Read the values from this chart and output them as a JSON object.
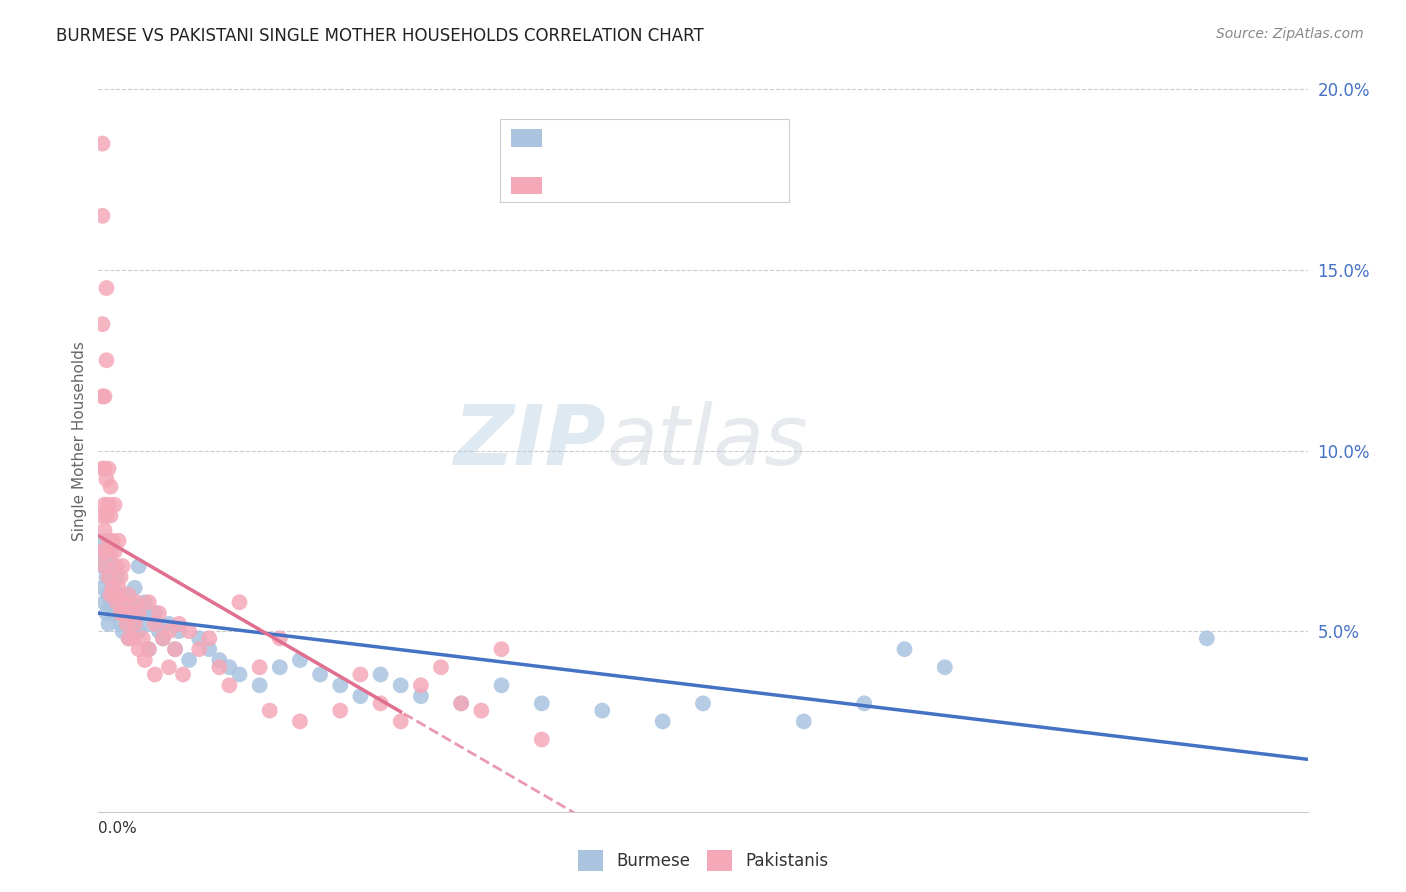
{
  "title": "BURMESE VS PAKISTANI SINGLE MOTHER HOUSEHOLDS CORRELATION CHART",
  "source": "Source: ZipAtlas.com",
  "ylabel": "Single Mother Households",
  "watermark_zip": "ZIP",
  "watermark_atlas": "atlas",
  "xmin": 0.0,
  "xmax": 0.6,
  "ymin": 0.0,
  "ymax": 0.205,
  "yticks": [
    0.05,
    0.1,
    0.15,
    0.2
  ],
  "ytick_labels": [
    "5.0%",
    "10.0%",
    "15.0%",
    "20.0%"
  ],
  "burmese_color": "#aac4e0",
  "pakistani_color": "#f4a8b8",
  "burmese_trend_color": "#4472c4",
  "pakistani_trend_color": "#e07090",
  "burmese_scatter": [
    [
      0.001,
      0.072
    ],
    [
      0.002,
      0.068
    ],
    [
      0.002,
      0.062
    ],
    [
      0.003,
      0.058
    ],
    [
      0.003,
      0.075
    ],
    [
      0.004,
      0.065
    ],
    [
      0.004,
      0.055
    ],
    [
      0.005,
      0.06
    ],
    [
      0.005,
      0.052
    ],
    [
      0.005,
      0.07
    ],
    [
      0.006,
      0.058
    ],
    [
      0.006,
      0.065
    ],
    [
      0.007,
      0.055
    ],
    [
      0.007,
      0.062
    ],
    [
      0.008,
      0.06
    ],
    [
      0.008,
      0.068
    ],
    [
      0.009,
      0.058
    ],
    [
      0.009,
      0.065
    ],
    [
      0.01,
      0.055
    ],
    [
      0.01,
      0.06
    ],
    [
      0.011,
      0.052
    ],
    [
      0.011,
      0.058
    ],
    [
      0.012,
      0.055
    ],
    [
      0.012,
      0.05
    ],
    [
      0.013,
      0.06
    ],
    [
      0.014,
      0.052
    ],
    [
      0.015,
      0.055
    ],
    [
      0.015,
      0.048
    ],
    [
      0.016,
      0.058
    ],
    [
      0.017,
      0.05
    ],
    [
      0.018,
      0.053
    ],
    [
      0.018,
      0.062
    ],
    [
      0.02,
      0.068
    ],
    [
      0.02,
      0.05
    ],
    [
      0.022,
      0.055
    ],
    [
      0.023,
      0.058
    ],
    [
      0.025,
      0.052
    ],
    [
      0.025,
      0.045
    ],
    [
      0.028,
      0.055
    ],
    [
      0.03,
      0.05
    ],
    [
      0.032,
      0.048
    ],
    [
      0.035,
      0.052
    ],
    [
      0.038,
      0.045
    ],
    [
      0.04,
      0.05
    ],
    [
      0.045,
      0.042
    ],
    [
      0.05,
      0.048
    ],
    [
      0.055,
      0.045
    ],
    [
      0.06,
      0.042
    ],
    [
      0.065,
      0.04
    ],
    [
      0.07,
      0.038
    ],
    [
      0.08,
      0.035
    ],
    [
      0.09,
      0.04
    ],
    [
      0.1,
      0.042
    ],
    [
      0.11,
      0.038
    ],
    [
      0.12,
      0.035
    ],
    [
      0.13,
      0.032
    ],
    [
      0.14,
      0.038
    ],
    [
      0.15,
      0.035
    ],
    [
      0.16,
      0.032
    ],
    [
      0.18,
      0.03
    ],
    [
      0.2,
      0.035
    ],
    [
      0.22,
      0.03
    ],
    [
      0.25,
      0.028
    ],
    [
      0.28,
      0.025
    ],
    [
      0.3,
      0.03
    ],
    [
      0.35,
      0.025
    ],
    [
      0.38,
      0.03
    ],
    [
      0.4,
      0.045
    ],
    [
      0.42,
      0.04
    ],
    [
      0.55,
      0.048
    ]
  ],
  "pakistani_scatter": [
    [
      0.001,
      0.072
    ],
    [
      0.001,
      0.082
    ],
    [
      0.002,
      0.095
    ],
    [
      0.002,
      0.115
    ],
    [
      0.002,
      0.135
    ],
    [
      0.002,
      0.165
    ],
    [
      0.002,
      0.185
    ],
    [
      0.003,
      0.068
    ],
    [
      0.003,
      0.078
    ],
    [
      0.003,
      0.085
    ],
    [
      0.003,
      0.095
    ],
    [
      0.003,
      0.115
    ],
    [
      0.004,
      0.072
    ],
    [
      0.004,
      0.082
    ],
    [
      0.004,
      0.092
    ],
    [
      0.004,
      0.125
    ],
    [
      0.004,
      0.145
    ],
    [
      0.005,
      0.065
    ],
    [
      0.005,
      0.075
    ],
    [
      0.005,
      0.085
    ],
    [
      0.005,
      0.095
    ],
    [
      0.006,
      0.06
    ],
    [
      0.006,
      0.072
    ],
    [
      0.006,
      0.082
    ],
    [
      0.006,
      0.09
    ],
    [
      0.007,
      0.062
    ],
    [
      0.007,
      0.075
    ],
    [
      0.008,
      0.06
    ],
    [
      0.008,
      0.072
    ],
    [
      0.008,
      0.085
    ],
    [
      0.009,
      0.058
    ],
    [
      0.009,
      0.068
    ],
    [
      0.01,
      0.062
    ],
    [
      0.01,
      0.075
    ],
    [
      0.011,
      0.055
    ],
    [
      0.011,
      0.065
    ],
    [
      0.012,
      0.055
    ],
    [
      0.012,
      0.068
    ],
    [
      0.013,
      0.058
    ],
    [
      0.014,
      0.052
    ],
    [
      0.015,
      0.048
    ],
    [
      0.015,
      0.06
    ],
    [
      0.016,
      0.055
    ],
    [
      0.017,
      0.048
    ],
    [
      0.018,
      0.052
    ],
    [
      0.019,
      0.058
    ],
    [
      0.02,
      0.045
    ],
    [
      0.02,
      0.055
    ],
    [
      0.022,
      0.048
    ],
    [
      0.023,
      0.042
    ],
    [
      0.025,
      0.045
    ],
    [
      0.025,
      0.058
    ],
    [
      0.028,
      0.052
    ],
    [
      0.028,
      0.038
    ],
    [
      0.03,
      0.055
    ],
    [
      0.032,
      0.048
    ],
    [
      0.035,
      0.04
    ],
    [
      0.035,
      0.05
    ],
    [
      0.038,
      0.045
    ],
    [
      0.04,
      0.052
    ],
    [
      0.042,
      0.038
    ],
    [
      0.045,
      0.05
    ],
    [
      0.05,
      0.045
    ],
    [
      0.055,
      0.048
    ],
    [
      0.06,
      0.04
    ],
    [
      0.065,
      0.035
    ],
    [
      0.07,
      0.058
    ],
    [
      0.08,
      0.04
    ],
    [
      0.085,
      0.028
    ],
    [
      0.09,
      0.048
    ],
    [
      0.1,
      0.025
    ],
    [
      0.12,
      0.028
    ],
    [
      0.13,
      0.038
    ],
    [
      0.14,
      0.03
    ],
    [
      0.15,
      0.025
    ],
    [
      0.16,
      0.035
    ],
    [
      0.17,
      0.04
    ],
    [
      0.18,
      0.03
    ],
    [
      0.19,
      0.028
    ],
    [
      0.2,
      0.045
    ],
    [
      0.22,
      0.02
    ]
  ]
}
